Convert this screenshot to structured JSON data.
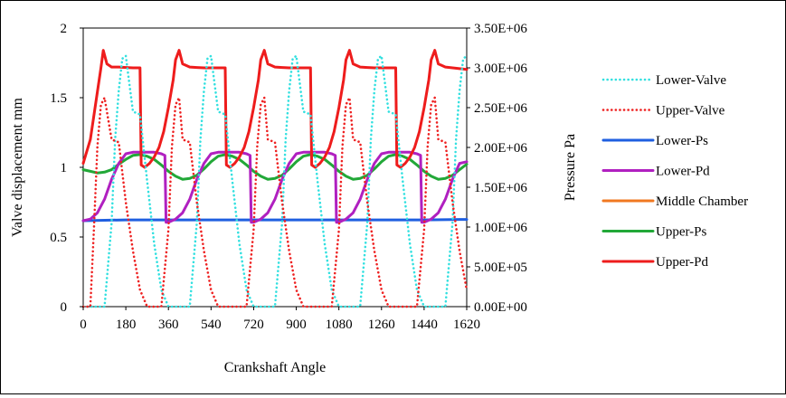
{
  "chart_data": {
    "type": "line",
    "xlabel": "Crankshaft Angle",
    "ylabel_left": "Valve displacement  mm",
    "ylabel_right": "Pressure  Pa",
    "xlim": [
      0,
      1620
    ],
    "ylim_left": [
      0,
      2
    ],
    "ylim_right": [
      0,
      3500000
    ],
    "grid": false,
    "legend_position": "right",
    "x_ticks": [
      "0",
      "180",
      "360",
      "540",
      "720",
      "900",
      "1080",
      "1260",
      "1440",
      "1620"
    ],
    "y_left_ticks": [
      "0",
      "0.5",
      "1",
      "1.5",
      "2"
    ],
    "y_right_ticks": [
      "0.00E+00",
      "5.00E+05",
      "1.00E+06",
      "1.50E+06",
      "2.00E+06",
      "2.50E+06",
      "3.00E+06",
      "3.50E+06"
    ],
    "series": [
      {
        "name": "Lower-Valve",
        "axis": "left",
        "color": "#33e0e0",
        "style": "dotted",
        "x": [
          0,
          90,
          120,
          135,
          150,
          165,
          180,
          210,
          240,
          270,
          300,
          330,
          360,
          450,
          480,
          495,
          510,
          525,
          540,
          570,
          600,
          630,
          660,
          690,
          720,
          810,
          840,
          855,
          870,
          885,
          900,
          930,
          960,
          990,
          1020,
          1050,
          1080,
          1170,
          1200,
          1215,
          1230,
          1245,
          1260,
          1290,
          1320,
          1350,
          1380,
          1410,
          1440,
          1530,
          1560,
          1575,
          1590,
          1605,
          1620
        ],
        "y": [
          0,
          0,
          0.6,
          1.2,
          1.55,
          1.78,
          1.8,
          1.4,
          1.38,
          0.9,
          0.45,
          0.12,
          0,
          0,
          0.6,
          1.2,
          1.55,
          1.78,
          1.8,
          1.4,
          1.38,
          0.9,
          0.45,
          0.12,
          0,
          0,
          0.6,
          1.2,
          1.55,
          1.78,
          1.8,
          1.4,
          1.38,
          0.9,
          0.45,
          0.12,
          0,
          0,
          0.6,
          1.2,
          1.55,
          1.78,
          1.8,
          1.4,
          1.38,
          0.9,
          0.45,
          0.12,
          0,
          0,
          0.6,
          1.2,
          1.55,
          1.78,
          1.8
        ]
      },
      {
        "name": "Upper-Valve",
        "axis": "left",
        "color": "#ee2222",
        "style": "dotted",
        "x": [
          0,
          30,
          45,
          60,
          75,
          90,
          120,
          150,
          180,
          210,
          240,
          270,
          330,
          360,
          375,
          390,
          405,
          420,
          450,
          480,
          510,
          540,
          570,
          600,
          690,
          720,
          735,
          750,
          765,
          780,
          810,
          840,
          870,
          900,
          930,
          960,
          1050,
          1080,
          1095,
          1110,
          1125,
          1140,
          1170,
          1200,
          1230,
          1260,
          1290,
          1320,
          1410,
          1440,
          1455,
          1470,
          1485,
          1500,
          1530,
          1560,
          1590,
          1620
        ],
        "y": [
          0,
          0,
          0.55,
          1.15,
          1.45,
          1.5,
          1.2,
          1.18,
          0.75,
          0.4,
          0.12,
          0,
          0,
          0.55,
          1.15,
          1.45,
          1.5,
          1.2,
          1.18,
          0.75,
          0.4,
          0.12,
          0,
          0,
          0,
          0.55,
          1.15,
          1.45,
          1.5,
          1.2,
          1.18,
          0.75,
          0.4,
          0.12,
          0,
          0,
          0,
          0.55,
          1.15,
          1.45,
          1.5,
          1.2,
          1.18,
          0.75,
          0.4,
          0.12,
          0,
          0,
          0,
          0.55,
          1.15,
          1.45,
          1.5,
          1.2,
          1.18,
          0.75,
          0.4,
          0.12
        ]
      },
      {
        "name": "Lower-Ps",
        "axis": "right",
        "color": "#1f5fe0",
        "style": "solid",
        "x": [
          0,
          180,
          360,
          540,
          720,
          900,
          1080,
          1260,
          1440,
          1620
        ],
        "y": [
          1080000,
          1090000,
          1090000,
          1090000,
          1090000,
          1090000,
          1090000,
          1090000,
          1090000,
          1095000
        ]
      },
      {
        "name": "Lower-Pd",
        "axis": "right",
        "color": "#b020c0",
        "style": "solid",
        "x": [
          0,
          30,
          60,
          90,
          120,
          150,
          180,
          210,
          240,
          270,
          300,
          330,
          345,
          350,
          360,
          390,
          420,
          450,
          480,
          510,
          540,
          570,
          600,
          630,
          660,
          690,
          705,
          710,
          720,
          750,
          780,
          810,
          840,
          870,
          900,
          930,
          960,
          990,
          1020,
          1050,
          1065,
          1070,
          1080,
          1110,
          1140,
          1170,
          1200,
          1230,
          1260,
          1290,
          1320,
          1350,
          1380,
          1410,
          1425,
          1430,
          1440,
          1470,
          1500,
          1530,
          1560,
          1590,
          1620
        ],
        "y": [
          1080000,
          1100000,
          1180000,
          1350000,
          1600000,
          1800000,
          1920000,
          1940000,
          1940000,
          1940000,
          1940000,
          1920000,
          1900000,
          1060000,
          1060000,
          1100000,
          1180000,
          1350000,
          1600000,
          1800000,
          1920000,
          1940000,
          1940000,
          1940000,
          1940000,
          1920000,
          1900000,
          1060000,
          1060000,
          1100000,
          1180000,
          1350000,
          1600000,
          1800000,
          1920000,
          1940000,
          1940000,
          1940000,
          1940000,
          1920000,
          1900000,
          1060000,
          1060000,
          1100000,
          1180000,
          1350000,
          1600000,
          1800000,
          1920000,
          1940000,
          1940000,
          1940000,
          1940000,
          1920000,
          1900000,
          1060000,
          1060000,
          1100000,
          1180000,
          1350000,
          1600000,
          1800000,
          1820000
        ]
      },
      {
        "name": "Middle Chamber",
        "axis": "right",
        "color": "#f07820",
        "style": "solid",
        "x": [],
        "y": []
      },
      {
        "name": "Upper-Ps",
        "axis": "right",
        "color": "#22a838",
        "style": "solid",
        "x": [
          0,
          30,
          60,
          90,
          120,
          150,
          180,
          210,
          240,
          270,
          300,
          330,
          360,
          390,
          420,
          450,
          480,
          510,
          540,
          570,
          600,
          630,
          660,
          690,
          720,
          750,
          780,
          810,
          840,
          870,
          900,
          930,
          960,
          990,
          1020,
          1050,
          1080,
          1110,
          1140,
          1170,
          1200,
          1230,
          1260,
          1290,
          1320,
          1350,
          1380,
          1410,
          1440,
          1470,
          1500,
          1530,
          1560,
          1590,
          1620
        ],
        "y": [
          1720000,
          1700000,
          1680000,
          1690000,
          1720000,
          1790000,
          1850000,
          1900000,
          1910000,
          1890000,
          1850000,
          1780000,
          1700000,
          1640000,
          1600000,
          1610000,
          1650000,
          1730000,
          1820000,
          1890000,
          1910000,
          1890000,
          1850000,
          1780000,
          1700000,
          1640000,
          1600000,
          1610000,
          1650000,
          1730000,
          1820000,
          1890000,
          1910000,
          1890000,
          1850000,
          1780000,
          1700000,
          1640000,
          1600000,
          1610000,
          1650000,
          1730000,
          1820000,
          1890000,
          1910000,
          1890000,
          1850000,
          1780000,
          1700000,
          1640000,
          1600000,
          1610000,
          1650000,
          1720000,
          1790000
        ]
      },
      {
        "name": "Upper-Pd",
        "axis": "right",
        "color": "#ee1c1c",
        "style": "solid",
        "x": [
          0,
          10,
          30,
          60,
          75,
          85,
          100,
          120,
          150,
          180,
          210,
          240,
          245,
          260,
          280,
          300,
          320,
          340,
          360,
          380,
          390,
          405,
          420,
          450,
          480,
          510,
          540,
          570,
          600,
          605,
          620,
          640,
          660,
          680,
          700,
          720,
          740,
          750,
          765,
          780,
          810,
          840,
          870,
          900,
          930,
          960,
          965,
          980,
          1000,
          1020,
          1040,
          1060,
          1080,
          1100,
          1110,
          1125,
          1140,
          1170,
          1200,
          1230,
          1260,
          1290,
          1320,
          1325,
          1340,
          1360,
          1380,
          1400,
          1420,
          1440,
          1460,
          1470,
          1485,
          1500,
          1530,
          1560,
          1590,
          1620
        ],
        "y": [
          1800000,
          1900000,
          2100000,
          2700000,
          3000000,
          3220000,
          3050000,
          3010000,
          3010000,
          3005000,
          3000000,
          3000000,
          1780000,
          1750000,
          1800000,
          1880000,
          2000000,
          2200000,
          2500000,
          2850000,
          3100000,
          3220000,
          3050000,
          3010000,
          3005000,
          3000000,
          3000000,
          3000000,
          3000000,
          1780000,
          1750000,
          1800000,
          1880000,
          2000000,
          2200000,
          2500000,
          2850000,
          3100000,
          3220000,
          3050000,
          3010000,
          3005000,
          3000000,
          3000000,
          3000000,
          3000000,
          1780000,
          1750000,
          1800000,
          1880000,
          2000000,
          2200000,
          2500000,
          2850000,
          3100000,
          3220000,
          3050000,
          3010000,
          3005000,
          3000000,
          3000000,
          3000000,
          3000000,
          1780000,
          1750000,
          1800000,
          1880000,
          2000000,
          2200000,
          2500000,
          2850000,
          3100000,
          3220000,
          3050000,
          3010000,
          3000000,
          2990000,
          2980000
        ]
      }
    ]
  }
}
